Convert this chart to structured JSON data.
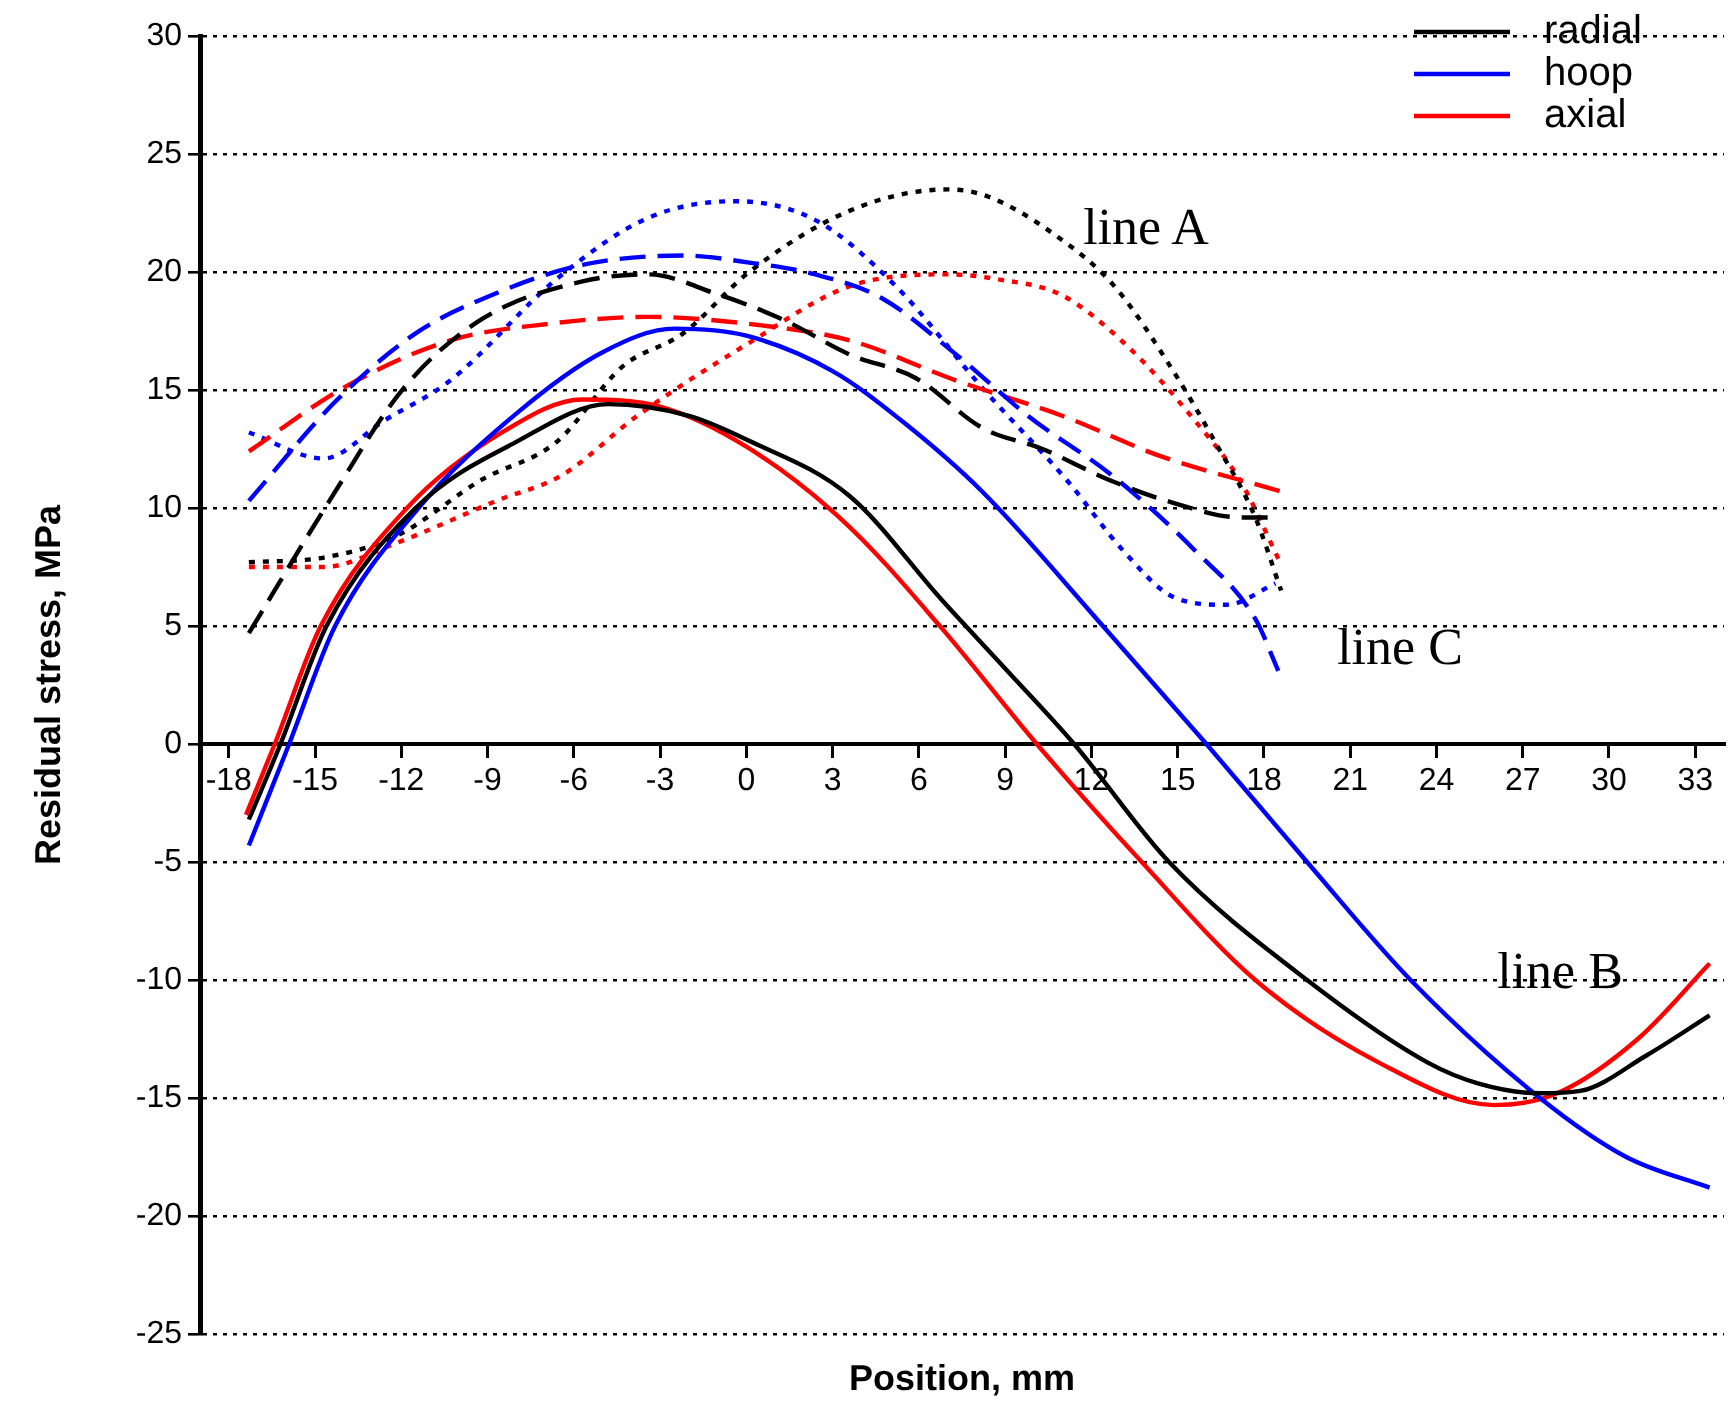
{
  "chart_data": {
    "type": "line",
    "xlabel": "Position, mm",
    "ylabel": "Residual stress, MPa",
    "xlim": [
      -19,
      34
    ],
    "ylim": [
      -25,
      30
    ],
    "xticks": [
      -18,
      -15,
      -12,
      -9,
      -6,
      -3,
      0,
      3,
      6,
      9,
      12,
      15,
      18,
      21,
      24,
      27,
      30,
      33
    ],
    "yticks": [
      -25,
      -20,
      -15,
      -10,
      -5,
      0,
      5,
      10,
      15,
      20,
      25,
      30
    ],
    "grid": "y",
    "legend": "top right",
    "marker": "none",
    "annotations": [
      "line A",
      "line B",
      "line C"
    ],
    "series": [
      {
        "name": "radial",
        "color": "#000000",
        "line_style": "solid",
        "x": [
          -17.3,
          -16.2,
          -14.6,
          -11.5,
          -8,
          -4.8,
          -2,
          0,
          3.6,
          6.8,
          9,
          11.4,
          14.7,
          19.5,
          23.7,
          25.5,
          27.6,
          29,
          31.3,
          33.5
        ],
        "values": [
          -3.2,
          0,
          5,
          10,
          12.8,
          14.4,
          13.9,
          12.9,
          10.5,
          6.1,
          3.2,
          0,
          -5,
          -10,
          -13.5,
          -14.4,
          -14.8,
          -14.7,
          -13.2,
          -11.5
        ]
      },
      {
        "name": "hoop",
        "color": "#0000ff",
        "line_style": "solid",
        "x": [
          -17.3,
          -15.9,
          -14.3,
          -11.4,
          -8,
          -5,
          -2.5,
          0,
          3,
          5.5,
          8.2,
          12.4,
          16,
          19.5,
          23.1,
          27.6,
          30.6,
          33.5
        ],
        "values": [
          -4.3,
          0,
          5,
          10,
          14,
          16.6,
          17.6,
          17.3,
          15.8,
          13.6,
          10.7,
          5,
          0,
          -5,
          -10,
          -15,
          -17.5,
          -18.8
        ]
      },
      {
        "name": "axial",
        "color": "#ff0000",
        "line_style": "solid",
        "x": [
          -17.4,
          -16.4,
          -14.8,
          -11.8,
          -8.5,
          -5.7,
          -3,
          0,
          3.5,
          6.8,
          10.1,
          13.75,
          17.7,
          22,
          26,
          28.2,
          31,
          33.5
        ],
        "values": [
          -3,
          0,
          5,
          10,
          13.2,
          14.6,
          14.3,
          12.6,
          9.3,
          4.9,
          0,
          -5,
          -10,
          -13.5,
          -15.3,
          -14.8,
          -12.5,
          -9.3
        ]
      },
      {
        "color": "#000000",
        "line_style": "dashed",
        "x": [
          -17.3,
          -14.5,
          -11.9,
          -9.2,
          -5.7,
          -3.4,
          -1.1,
          1.25,
          3.6,
          5.9,
          8.2,
          10.3,
          12.6,
          14.9,
          17.2,
          18.2
        ],
        "values": [
          4.7,
          10.3,
          15.1,
          18,
          19.6,
          19.9,
          19.1,
          18,
          16.5,
          15.5,
          13.4,
          12.5,
          11.2,
          10.2,
          9.6,
          9.6
        ]
      },
      {
        "color": "#0000ff",
        "line_style": "dashed",
        "x": [
          -17.3,
          -14.3,
          -11.5,
          -8.7,
          -5.7,
          -2.2,
          0.1,
          2.4,
          4.7,
          7.3,
          9.8,
          12.8,
          15.6,
          17.7,
          18.5
        ],
        "values": [
          10.3,
          14.5,
          17.4,
          19.1,
          20.3,
          20.7,
          20.4,
          19.9,
          18.9,
          16.5,
          13.9,
          11.3,
          8.2,
          5.3,
          3.1
        ]
      },
      {
        "color": "#ff0000",
        "line_style": "dashed",
        "x": [
          -17.3,
          -14,
          -10.3,
          -6.9,
          -3.4,
          0.1,
          3.6,
          7.3,
          11,
          14.4,
          18.6
        ],
        "values": [
          12.4,
          15.1,
          17.1,
          17.8,
          18.1,
          17.8,
          17.1,
          15.4,
          13.9,
          12.2,
          10.7
        ]
      },
      {
        "color": "#000000",
        "line_style": "dotted",
        "x": [
          -17.3,
          -14.7,
          -12.2,
          -9.2,
          -6.6,
          -4.3,
          -2.2,
          0.1,
          3.6,
          7,
          8.4,
          10.7,
          12.8,
          14.9,
          16.3,
          17.7,
          18.6
        ],
        "values": [
          7.7,
          7.9,
          8.8,
          11.2,
          12.8,
          16,
          17.4,
          20,
          22.6,
          23.5,
          23.2,
          21.6,
          19.4,
          15.7,
          12.8,
          9.6,
          6.5
        ]
      },
      {
        "color": "#0000ff",
        "line_style": "dotted",
        "x": [
          -17.3,
          -14.7,
          -12.6,
          -10.3,
          -6.6,
          -3.4,
          -0.4,
          2.4,
          5.2,
          8.2,
          11.2,
          13.1,
          14.9,
          16.7,
          18.4
        ],
        "values": [
          13.2,
          12.1,
          13.7,
          15.4,
          19.7,
          22.3,
          23,
          22.2,
          19.4,
          15.1,
          11.1,
          8.2,
          6.2,
          5.9,
          6.8
        ]
      },
      {
        "color": "#ff0000",
        "line_style": "dotted",
        "x": [
          -17.3,
          -14.7,
          -12.2,
          -8.7,
          -6.4,
          -3.8,
          0.1,
          3.6,
          7,
          8.7,
          11,
          13.3,
          15.6,
          17.2,
          18.6
        ],
        "values": [
          7.5,
          7.5,
          8.5,
          10.3,
          11.4,
          13.9,
          17,
          19.4,
          19.9,
          19.7,
          19,
          16.8,
          13.7,
          11.1,
          7.6
        ]
      }
    ]
  }
}
